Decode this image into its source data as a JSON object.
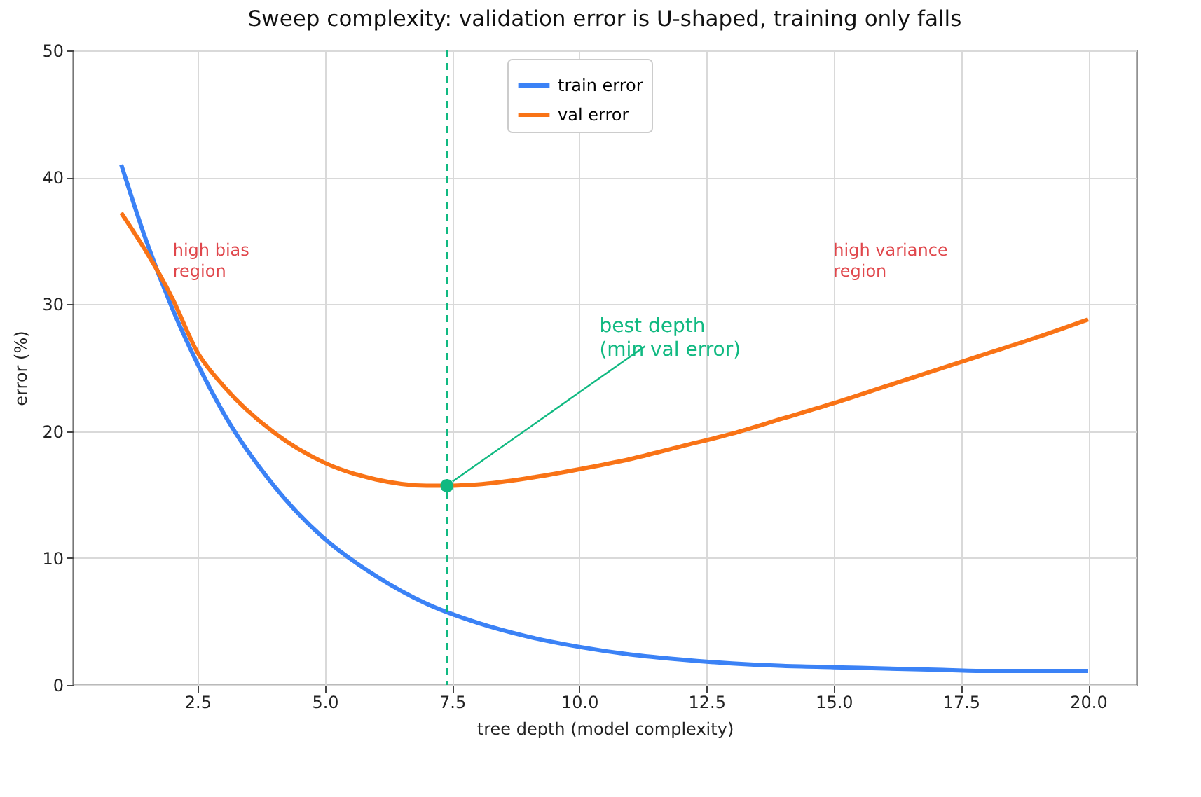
{
  "chart_data": {
    "type": "line",
    "title": "Sweep complexity: validation error is U-shaped, training only falls",
    "xlabel": "tree depth (model complexity)",
    "ylabel": "error (%)",
    "xlim": [
      0.05,
      20.95
    ],
    "ylim": [
      0,
      50
    ],
    "xticks": [
      2.5,
      {
        "value": 5,
        "label": "5.0"
      },
      7.5,
      {
        "value": 10,
        "label": "10.0"
      },
      12.5,
      {
        "value": 15,
        "label": "15.0"
      },
      17.5,
      {
        "value": 20,
        "label": "20.0"
      }
    ],
    "yticks": [
      0,
      10,
      20,
      30,
      40,
      50
    ],
    "grid": true,
    "legend": "top",
    "line_style": "solid",
    "series": [
      {
        "name": "train error",
        "color": "#3b82f6",
        "x": [
          1,
          1.5,
          2,
          2.5,
          3,
          4,
          5,
          6,
          7,
          8,
          9,
          10,
          11,
          12,
          13,
          14,
          15,
          16,
          17,
          18,
          20
        ],
        "values": [
          41,
          34.9,
          29.7,
          25.3,
          21.5,
          15.7,
          11.5,
          8.6,
          6.4,
          4.9,
          3.8,
          3.0,
          2.4,
          2.0,
          1.7,
          1.5,
          1.4,
          1.3,
          1.2,
          1.1,
          1.1
        ]
      },
      {
        "name": "val error",
        "color": "#f97316",
        "x": [
          1,
          2,
          2.5,
          3,
          4,
          5,
          6,
          7,
          7.4,
          8,
          9,
          10,
          11,
          12,
          13,
          14,
          15,
          16,
          17,
          18,
          19,
          20
        ],
        "values": [
          37.2,
          30.5,
          26.2,
          23.6,
          19.9,
          17.5,
          16.2,
          15.7,
          15.7,
          15.8,
          16.3,
          17.0,
          17.8,
          18.8,
          19.8,
          21.0,
          22.2,
          23.5,
          24.8,
          26.1,
          27.4,
          28.8
        ]
      },
      {
        "type": "scatter",
        "color": "#10b981",
        "x": [
          7.4
        ],
        "values": [
          15.7
        ],
        "marker": "circle"
      }
    ],
    "ref_lines": [
      {
        "axis": "x",
        "value": 7.4,
        "color": "#10b981",
        "line_style": "dashed"
      }
    ],
    "annotations": [
      "high bias\nregion",
      "high variance\nregion",
      {
        "text": "best depth\n(min val error)",
        "x": 7.4,
        "y": 15.7
      }
    ]
  }
}
